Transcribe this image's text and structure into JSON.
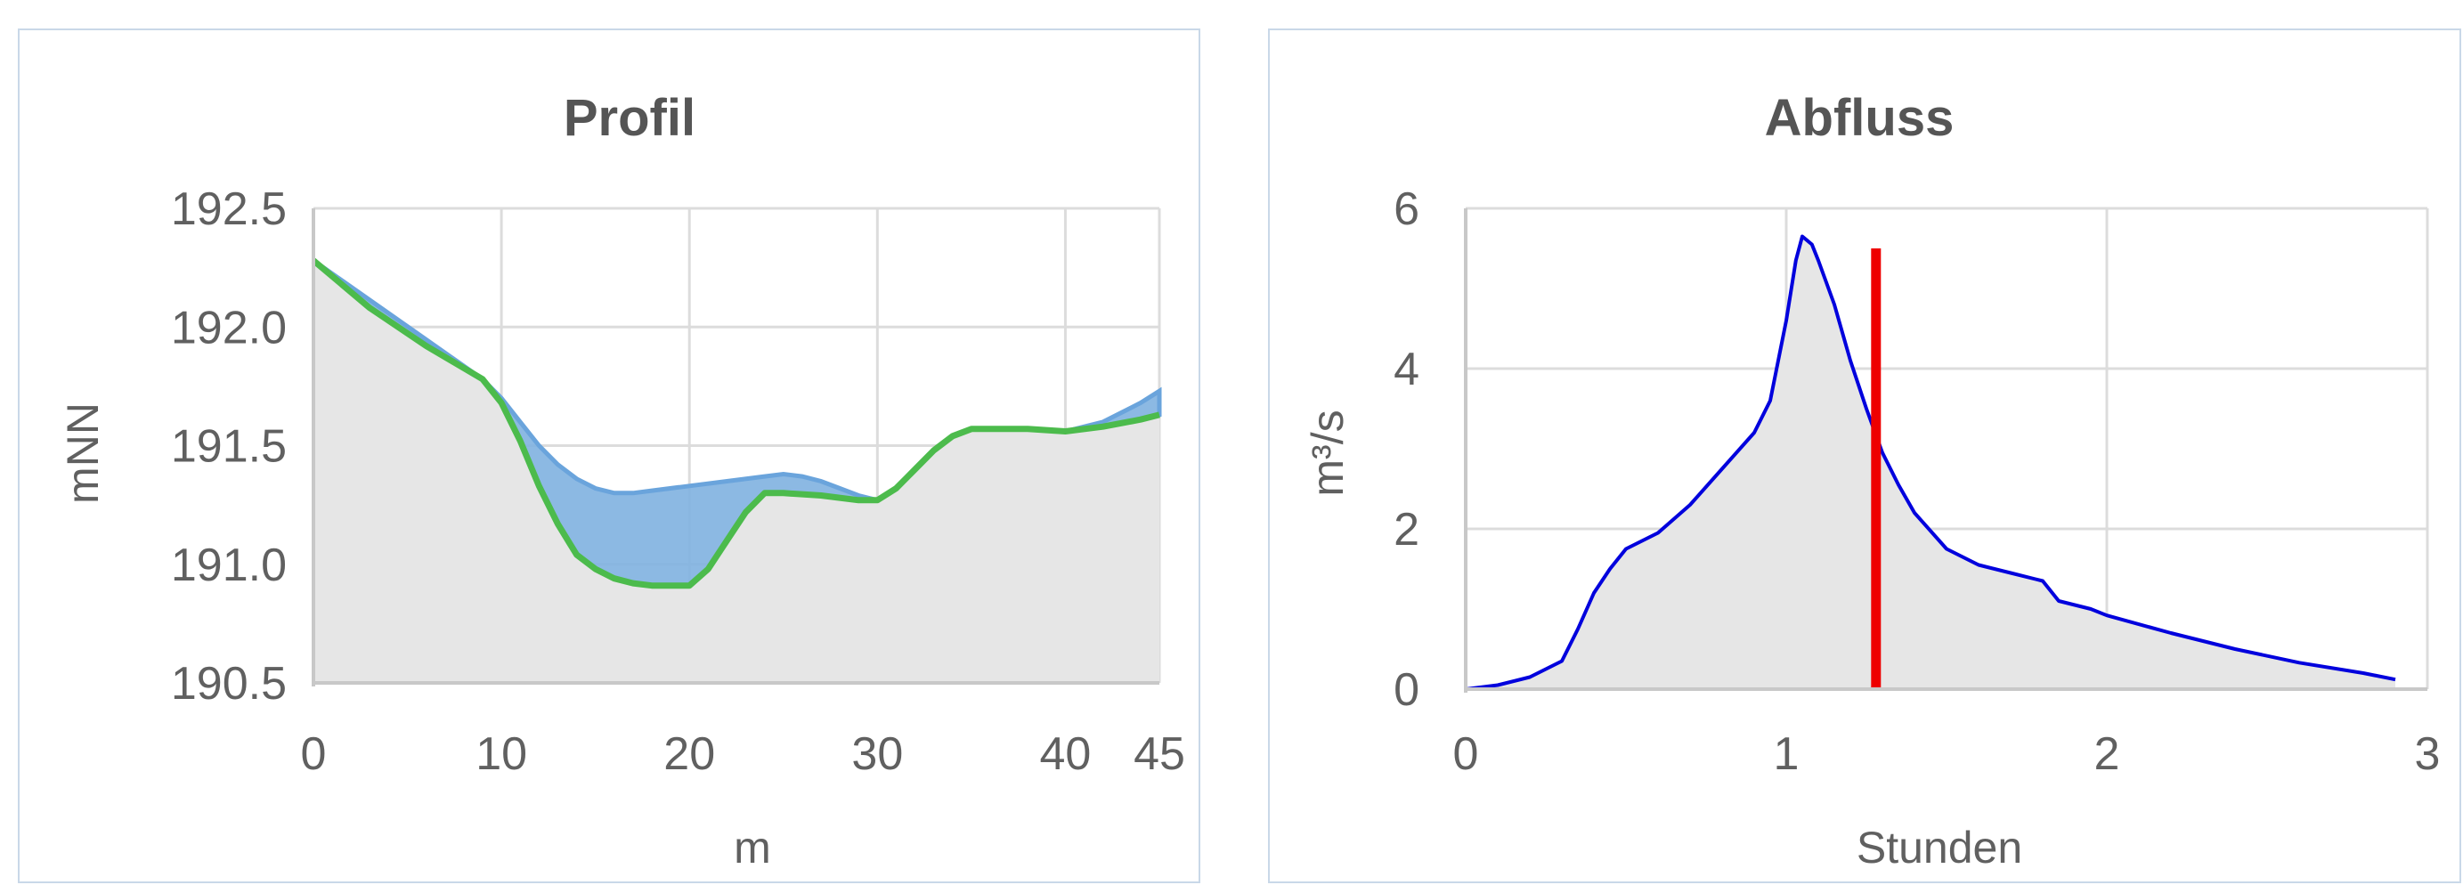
{
  "chart_data": [
    {
      "type": "area",
      "title": "Profil",
      "xlabel": "m",
      "ylabel": "mNN",
      "xlim": [
        0,
        45
      ],
      "ylim": [
        190.5,
        192.5
      ],
      "x_ticks": [
        "0",
        "10",
        "20",
        "30",
        "40",
        "45"
      ],
      "y_ticks": [
        "192.5",
        "192.0",
        "191.5",
        "191.0",
        "190.5"
      ],
      "grid": true,
      "colors": {
        "ground": "#e6e6e6",
        "ground_line": "#4cbb4c",
        "water": "#7fb1e0",
        "water_line": "#6aa4dc"
      },
      "series": [
        {
          "x": [
            0,
            3,
            6,
            9,
            10,
            11,
            12,
            13,
            14,
            15,
            16,
            17,
            18,
            19,
            20,
            21,
            22,
            23,
            24,
            25,
            27,
            29,
            30,
            31,
            32,
            33,
            34,
            35,
            36,
            38,
            40,
            42,
            44,
            45
          ],
          "y": [
            192.28,
            192.08,
            191.92,
            191.78,
            191.68,
            191.52,
            191.33,
            191.17,
            191.04,
            190.98,
            190.94,
            190.92,
            190.91,
            190.91,
            190.91,
            190.98,
            191.1,
            191.22,
            191.3,
            191.3,
            191.29,
            191.27,
            191.27,
            191.32,
            191.4,
            191.48,
            191.54,
            191.57,
            191.57,
            191.57,
            191.56,
            191.58,
            191.61,
            191.63
          ]
        },
        {
          "x": [
            0,
            9,
            10,
            11,
            12,
            13,
            14,
            15,
            16,
            17,
            18,
            20,
            22,
            24,
            25,
            26,
            27,
            28,
            29,
            30,
            40,
            42,
            44,
            45
          ],
          "y": [
            192.28,
            191.78,
            191.7,
            191.6,
            191.5,
            191.42,
            191.36,
            191.32,
            191.3,
            191.3,
            191.31,
            191.33,
            191.35,
            191.37,
            191.38,
            191.37,
            191.35,
            191.32,
            191.29,
            191.27,
            191.56,
            191.6,
            191.68,
            191.73
          ]
        }
      ]
    },
    {
      "type": "area",
      "title": "Abfluss",
      "xlabel": "Stunden",
      "ylabel": "m³/s",
      "xlim": [
        0,
        3
      ],
      "ylim": [
        0,
        6
      ],
      "x_ticks": [
        "0",
        "1",
        "2",
        "3"
      ],
      "y_ticks": [
        "6",
        "4",
        "2",
        "0"
      ],
      "grid": true,
      "colors": {
        "line": "#0000dd",
        "fill": "#e6e6e6",
        "marker": "#ee0000"
      },
      "marker_x": 1.28,
      "series": [
        {
          "x": [
            0,
            0.1,
            0.2,
            0.3,
            0.35,
            0.4,
            0.45,
            0.5,
            0.55,
            0.6,
            0.7,
            0.8,
            0.9,
            0.95,
            1.0,
            1.03,
            1.05,
            1.08,
            1.1,
            1.15,
            1.2,
            1.25,
            1.3,
            1.35,
            1.4,
            1.5,
            1.6,
            1.7,
            1.8,
            1.85,
            1.9,
            1.95,
            2.0,
            2.2,
            2.4,
            2.6,
            2.8,
            2.9
          ],
          "y": [
            0,
            0.05,
            0.15,
            0.35,
            0.75,
            1.2,
            1.5,
            1.75,
            1.85,
            1.95,
            2.3,
            2.75,
            3.2,
            3.6,
            4.6,
            5.35,
            5.65,
            5.55,
            5.35,
            4.8,
            4.1,
            3.5,
            2.95,
            2.55,
            2.2,
            1.75,
            1.55,
            1.45,
            1.35,
            1.1,
            1.05,
            1.0,
            0.92,
            0.7,
            0.5,
            0.33,
            0.2,
            0.12
          ]
        }
      ]
    }
  ]
}
